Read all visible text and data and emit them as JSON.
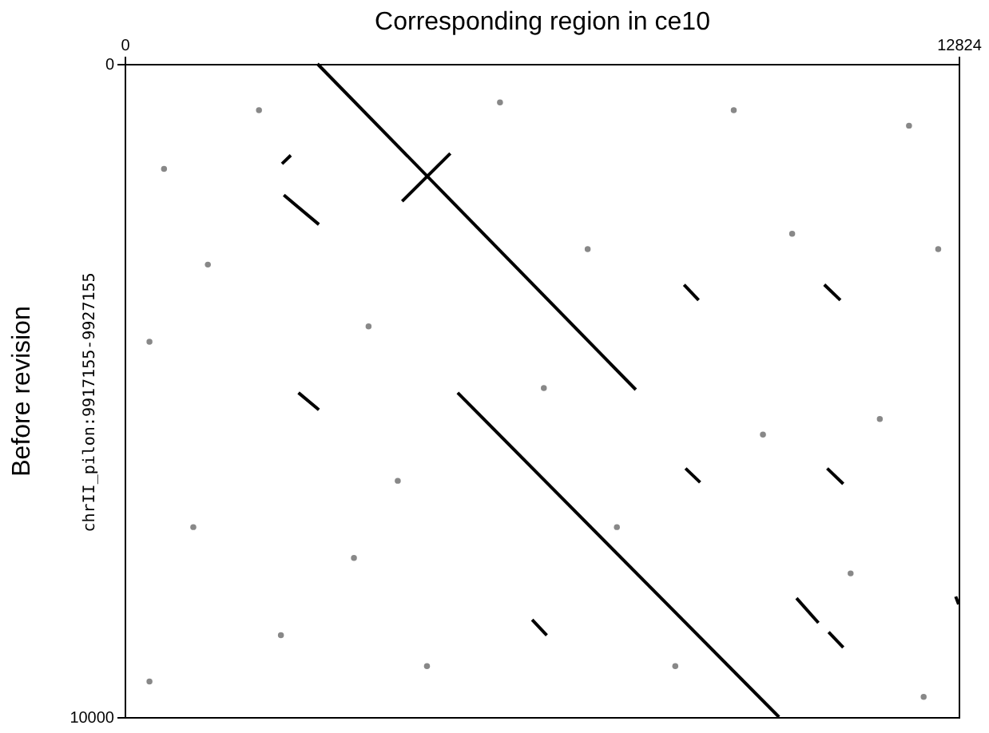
{
  "chart_data": {
    "type": "line",
    "xlabel": "Corresponding region in ce10",
    "ylabel": "Before revision",
    "annotations": [
      "chrII_pilon:9917155-9927155"
    ],
    "xlim": [
      0,
      12824
    ],
    "xticks": [
      0,
      12824
    ],
    "ylim": [
      10000,
      0
    ],
    "yticks": [
      0,
      10000
    ],
    "grid": false,
    "marker": "none",
    "line_style": "solid",
    "series": [
      {
        "color": "#000000",
        "x": [
          2965,
          7860
        ],
        "values": [
          0,
          4988
        ]
      },
      {
        "color": "#000000",
        "x": [
          5121,
          10062
        ],
        "values": [
          5035,
          10000
        ]
      },
      {
        "color": "#000000",
        "x": [
          4267,
          5008
        ],
        "values": [
          2104,
          1371
        ]
      },
      {
        "color": "#000000",
        "x": [
          2448,
          2987
        ],
        "values": [
          2009,
          2459
        ]
      },
      {
        "color": "#000000",
        "x": [
          2420,
          2555
        ],
        "values": [
          1530,
          1400
        ]
      },
      {
        "color": "#000000",
        "x": [
          2673,
          2987
        ],
        "values": [
          5035,
          5296
        ]
      },
      {
        "color": "#000000",
        "x": [
          8602,
          8826
        ],
        "values": [
          3381,
          3617
        ]
      },
      {
        "color": "#000000",
        "x": [
          10758,
          11005
        ],
        "values": [
          3381,
          3617
        ]
      },
      {
        "color": "#000000",
        "x": [
          8625,
          8849
        ],
        "values": [
          6194,
          6407
        ]
      },
      {
        "color": "#000000",
        "x": [
          10803,
          11050
        ],
        "values": [
          6194,
          6430
        ]
      },
      {
        "color": "#000000",
        "x": [
          6266,
          6491
        ],
        "values": [
          8511,
          8747
        ]
      },
      {
        "color": "#000000",
        "x": [
          10331,
          10668
        ],
        "values": [
          8180,
          8558
        ]
      },
      {
        "color": "#000000",
        "x": [
          10825,
          11050
        ],
        "values": [
          8700,
          8936
        ]
      },
      {
        "color": "#000000",
        "x": [
          12779,
          12824
        ],
        "values": [
          8156,
          8274
        ]
      },
      {
        "type": "scatter",
        "color": "#888888",
        "x": [
          606,
          2066,
          5772,
          9366,
          12061,
          1280,
          3751,
          7120,
          10264,
          12510,
          382,
          4200,
          7569,
          11612,
          1056,
          2403,
          4649,
          8467,
          12286,
          382,
          9815,
          6446,
          3526,
          11163
        ],
        "values": [
          1608,
          709,
          591,
          709,
          946,
          3073,
          4019,
          2837,
          2600,
          2837,
          4255,
          6383,
          7092,
          5437,
          7092,
          8747,
          9220,
          9220,
          9692,
          9456,
          5674,
          4964,
          7565,
          7801
        ]
      }
    ]
  }
}
